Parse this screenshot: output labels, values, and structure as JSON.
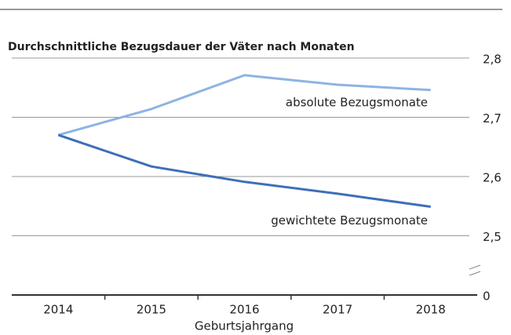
{
  "chart_data": {
    "type": "line",
    "title": "Durchschnittliche Bezugsdauer der Väter nach Monaten",
    "x_label": "Geburtsjahrgang",
    "categories": [
      "2014",
      "2015",
      "2016",
      "2017",
      "2018"
    ],
    "series": [
      {
        "name": "absolute Bezugsmonate",
        "color": "#8db4e2",
        "values": [
          2.67,
          2.714,
          2.771,
          2.755,
          2.746
        ]
      },
      {
        "name": "gewichtete Bezugsmonate",
        "color": "#3d70b8",
        "values": [
          2.67,
          2.617,
          2.591,
          2.571,
          2.549
        ]
      }
    ],
    "ylim": [
      2.4,
      2.8
    ],
    "axis_break": true,
    "yticks": [
      {
        "value": 2.8,
        "label": "2,8"
      },
      {
        "value": 2.7,
        "label": "2,7"
      },
      {
        "value": 2.6,
        "label": "2,6"
      },
      {
        "value": 2.5,
        "label": "2,5"
      },
      0
    ],
    "grid": true
  }
}
